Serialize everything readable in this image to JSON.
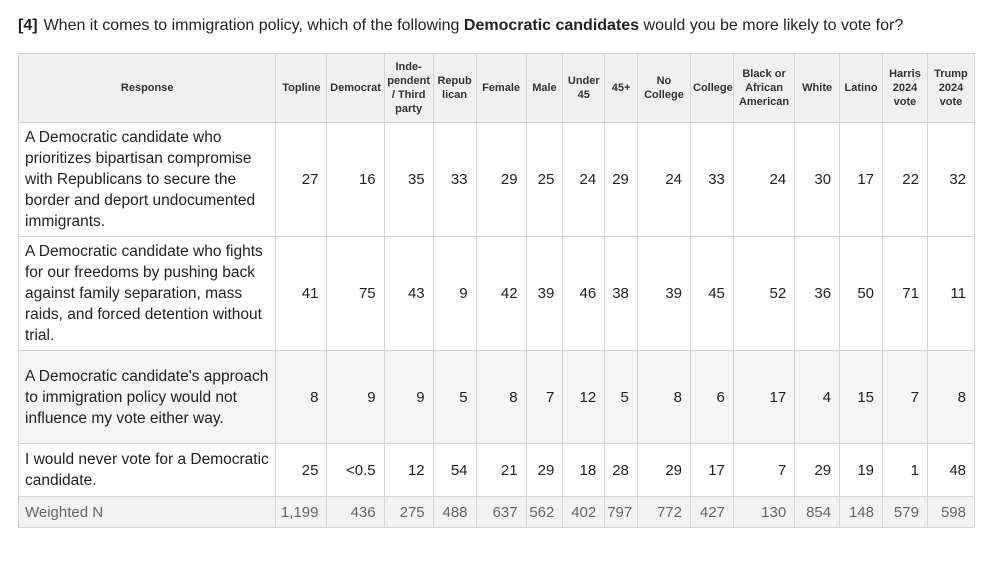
{
  "question": {
    "number": "[4]",
    "text_before": "When it comes to immigration policy, which of the following ",
    "text_bold": "Democratic candidates",
    "text_after": " would you be more likely to vote for?"
  },
  "table": {
    "columns": [
      {
        "key": "response",
        "label": "Response"
      },
      {
        "key": "topline",
        "label": "Topline"
      },
      {
        "key": "democrat",
        "label": "Democrat"
      },
      {
        "key": "independent",
        "label": "Inde- pendent / Third party"
      },
      {
        "key": "republican",
        "label": "Repub lican"
      },
      {
        "key": "female",
        "label": "Female"
      },
      {
        "key": "male",
        "label": "Male"
      },
      {
        "key": "under45",
        "label": "Under 45"
      },
      {
        "key": "over45",
        "label": "45+"
      },
      {
        "key": "nocollege",
        "label": "No College"
      },
      {
        "key": "college",
        "label": "College"
      },
      {
        "key": "black",
        "label": "Black or African American"
      },
      {
        "key": "white",
        "label": "White"
      },
      {
        "key": "latino",
        "label": "Latino"
      },
      {
        "key": "harris",
        "label": "Harris 2024 vote"
      },
      {
        "key": "trump",
        "label": "Trump 2024 vote"
      }
    ],
    "rows": [
      {
        "response": "A Democratic candidate who prioritizes bipartisan compromise with Republicans to secure the border and deport undocumented immigrants.",
        "values": [
          "27",
          "16",
          "35",
          "33",
          "29",
          "25",
          "24",
          "29",
          "24",
          "33",
          "24",
          "30",
          "17",
          "22",
          "32"
        ]
      },
      {
        "response": "A Democratic candidate who fights for our freedoms by pushing back against family separation, mass raids, and forced detention without trial.",
        "values": [
          "41",
          "75",
          "43",
          "9",
          "42",
          "39",
          "46",
          "38",
          "39",
          "45",
          "52",
          "36",
          "50",
          "71",
          "11"
        ]
      },
      {
        "response": "A Democratic candidate's approach to immigration policy would not influence my vote either way.",
        "values": [
          "8",
          "9",
          "9",
          "5",
          "8",
          "7",
          "12",
          "5",
          "8",
          "6",
          "17",
          "4",
          "15",
          "7",
          "8"
        ]
      },
      {
        "response": "I would never vote for a Democratic candidate.",
        "values": [
          "25",
          "<0.5",
          "12",
          "54",
          "21",
          "29",
          "18",
          "28",
          "29",
          "17",
          "7",
          "29",
          "19",
          "1",
          "48"
        ]
      }
    ],
    "footer": {
      "label": "Weighted N",
      "values": [
        "1,199",
        "436",
        "275",
        "488",
        "637",
        "562",
        "402",
        "797",
        "772",
        "427",
        "130",
        "854",
        "148",
        "579",
        "598"
      ]
    }
  }
}
